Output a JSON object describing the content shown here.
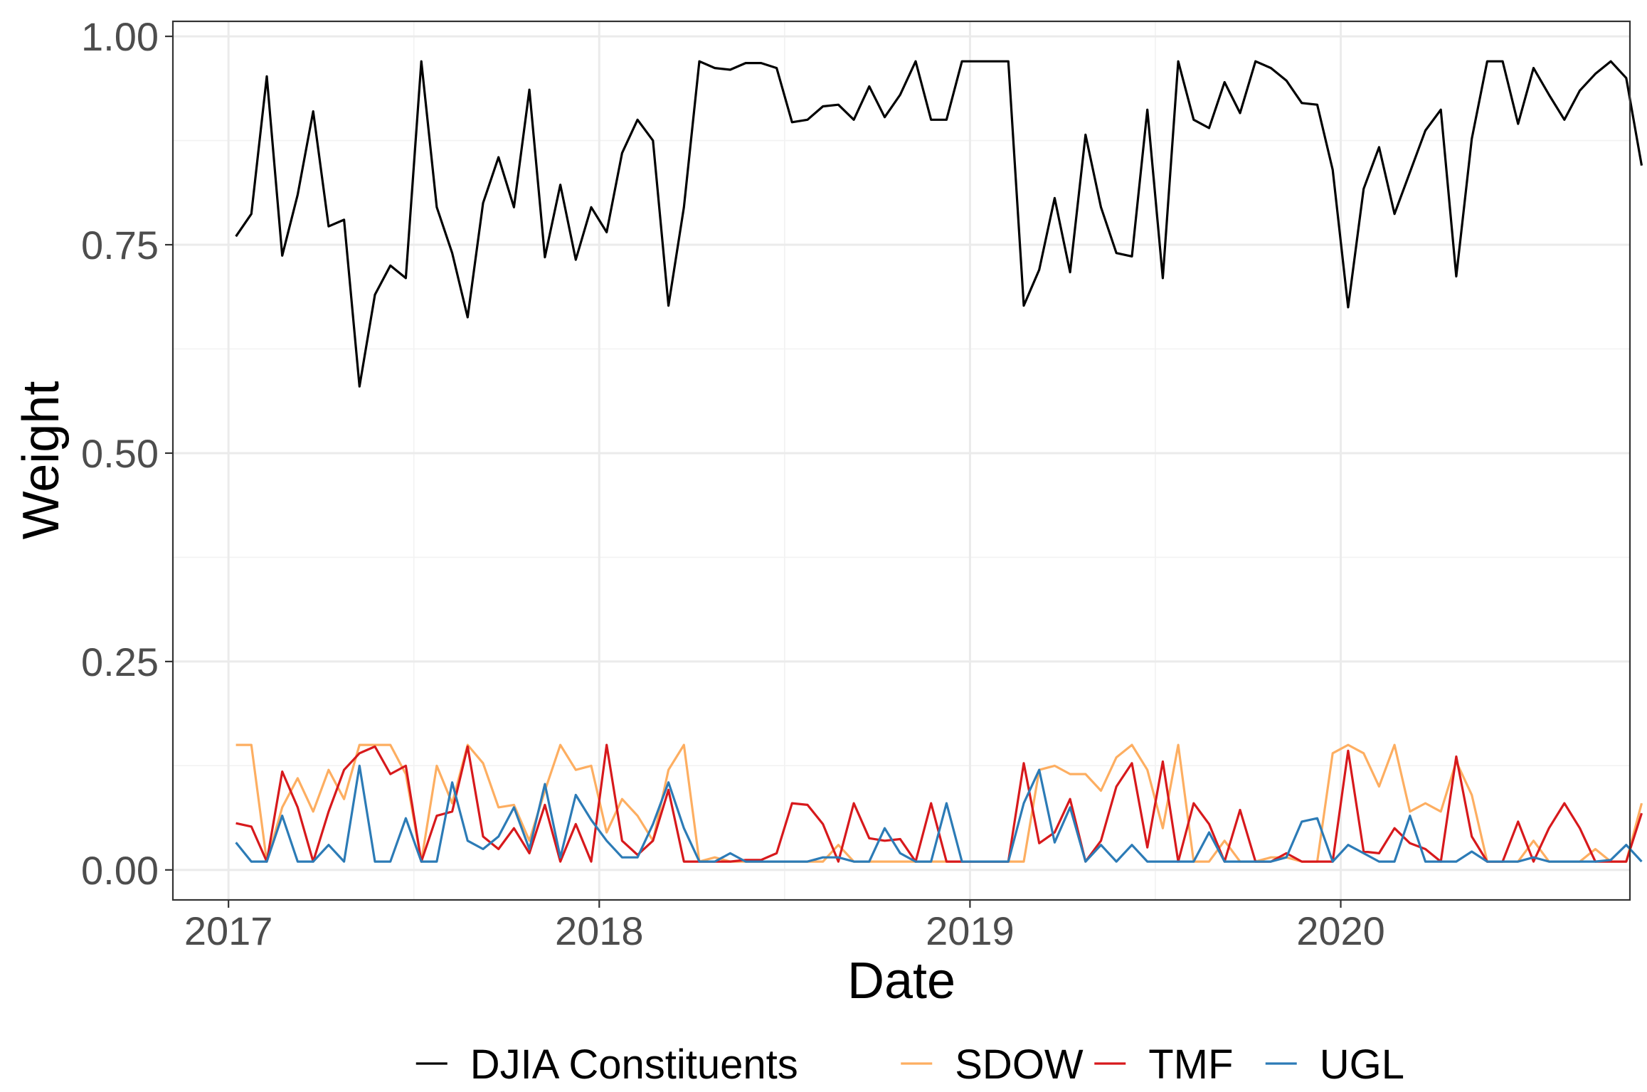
{
  "chart_data": {
    "type": "line",
    "title": "",
    "xlabel": "Date",
    "ylabel": "Weight",
    "xlim": [
      2016.85,
      2020.78
    ],
    "ylim": [
      -0.036,
      1.018
    ],
    "x_ticks": [
      2017,
      2018,
      2019,
      2020
    ],
    "x_tick_labels": [
      "2017",
      "2018",
      "2019",
      "2020"
    ],
    "y_ticks": [
      0,
      0.25,
      0.5,
      0.75,
      1
    ],
    "y_tick_labels": [
      "0.00",
      "0.25",
      "0.50",
      "0.75",
      "1.00"
    ],
    "grid": true,
    "legend_position": "bottom",
    "start_date": 2017.02,
    "step_months": 0.5,
    "series": [
      {
        "name": "DJIA Constituents",
        "color": "#000000",
        "values": [
          0.76,
          0.787,
          0.952,
          0.737,
          0.81,
          0.91,
          0.772,
          0.78,
          0.58,
          0.69,
          0.725,
          0.71,
          0.97,
          0.795,
          0.74,
          0.663,
          0.8,
          0.855,
          0.795,
          0.936,
          0.735,
          0.822,
          0.732,
          0.795,
          0.765,
          0.86,
          0.9,
          0.875,
          0.677,
          0.795,
          0.97,
          0.962,
          0.96,
          0.968,
          0.968,
          0.962,
          0.897,
          0.9,
          0.916,
          0.918,
          0.9,
          0.94,
          0.903,
          0.93,
          0.97,
          0.9,
          0.9,
          0.97,
          0.97,
          0.97,
          0.97,
          0.677,
          0.72,
          0.806,
          0.717,
          0.882,
          0.795,
          0.74,
          0.736,
          0.912,
          0.71,
          0.97,
          0.9,
          0.89,
          0.945,
          0.908,
          0.97,
          0.962,
          0.947,
          0.92,
          0.918,
          0.84,
          0.675,
          0.817,
          0.867,
          0.787,
          0.837,
          0.887,
          0.912,
          0.712,
          0.877,
          0.97,
          0.97,
          0.895,
          0.962,
          0.93,
          0.9,
          0.935,
          0.955,
          0.97,
          0.95,
          0.845
        ]
      },
      {
        "name": "SDOW",
        "color": "#fdae61",
        "values": [
          0.15,
          0.15,
          0.01,
          0.075,
          0.11,
          0.07,
          0.12,
          0.085,
          0.15,
          0.15,
          0.15,
          0.115,
          0.01,
          0.125,
          0.08,
          0.15,
          0.128,
          0.075,
          0.078,
          0.035,
          0.095,
          0.15,
          0.12,
          0.125,
          0.045,
          0.085,
          0.065,
          0.035,
          0.12,
          0.15,
          0.01,
          0.015,
          0.01,
          0.01,
          0.01,
          0.01,
          0.01,
          0.01,
          0.01,
          0.03,
          0.01,
          0.01,
          0.01,
          0.01,
          0.01,
          0.01,
          0.01,
          0.01,
          0.01,
          0.01,
          0.01,
          0.01,
          0.12,
          0.125,
          0.115,
          0.115,
          0.095,
          0.135,
          0.15,
          0.12,
          0.05,
          0.15,
          0.01,
          0.01,
          0.035,
          0.01,
          0.01,
          0.015,
          0.015,
          0.01,
          0.01,
          0.14,
          0.15,
          0.14,
          0.1,
          0.15,
          0.07,
          0.08,
          0.07,
          0.13,
          0.09,
          0.01,
          0.01,
          0.01,
          0.035,
          0.01,
          0.01,
          0.01,
          0.025,
          0.01,
          0.01,
          0.08
        ]
      },
      {
        "name": "TMF",
        "color": "#d7191c",
        "values": [
          0.056,
          0.052,
          0.01,
          0.118,
          0.075,
          0.01,
          0.07,
          0.12,
          0.14,
          0.148,
          0.115,
          0.125,
          0.01,
          0.065,
          0.07,
          0.148,
          0.04,
          0.025,
          0.05,
          0.02,
          0.078,
          0.01,
          0.055,
          0.01,
          0.15,
          0.035,
          0.018,
          0.035,
          0.096,
          0.01,
          0.01,
          0.01,
          0.01,
          0.012,
          0.012,
          0.02,
          0.08,
          0.078,
          0.055,
          0.01,
          0.08,
          0.038,
          0.035,
          0.037,
          0.01,
          0.08,
          0.01,
          0.01,
          0.01,
          0.01,
          0.01,
          0.128,
          0.032,
          0.045,
          0.085,
          0.01,
          0.035,
          0.1,
          0.128,
          0.027,
          0.13,
          0.01,
          0.08,
          0.055,
          0.01,
          0.072,
          0.01,
          0.01,
          0.02,
          0.01,
          0.01,
          0.01,
          0.143,
          0.022,
          0.02,
          0.05,
          0.032,
          0.025,
          0.01,
          0.136,
          0.04,
          0.01,
          0.01,
          0.058,
          0.01,
          0.05,
          0.08,
          0.05,
          0.01,
          0.01,
          0.01,
          0.068
        ]
      },
      {
        "name": "UGL",
        "color": "#2c7bb6",
        "values": [
          0.033,
          0.01,
          0.01,
          0.065,
          0.01,
          0.01,
          0.03,
          0.01,
          0.125,
          0.01,
          0.01,
          0.062,
          0.01,
          0.01,
          0.105,
          0.035,
          0.025,
          0.04,
          0.075,
          0.025,
          0.103,
          0.015,
          0.09,
          0.06,
          0.035,
          0.015,
          0.015,
          0.055,
          0.105,
          0.05,
          0.01,
          0.01,
          0.02,
          0.01,
          0.01,
          0.01,
          0.01,
          0.01,
          0.015,
          0.015,
          0.01,
          0.01,
          0.05,
          0.02,
          0.01,
          0.01,
          0.08,
          0.01,
          0.01,
          0.01,
          0.01,
          0.08,
          0.12,
          0.033,
          0.075,
          0.01,
          0.03,
          0.01,
          0.03,
          0.01,
          0.01,
          0.01,
          0.01,
          0.045,
          0.01,
          0.01,
          0.01,
          0.01,
          0.015,
          0.058,
          0.062,
          0.01,
          0.03,
          0.02,
          0.01,
          0.01,
          0.065,
          0.01,
          0.01,
          0.01,
          0.022,
          0.01,
          0.01,
          0.01,
          0.015,
          0.01,
          0.01,
          0.01,
          0.01,
          0.012,
          0.03,
          0.01
        ]
      }
    ]
  }
}
